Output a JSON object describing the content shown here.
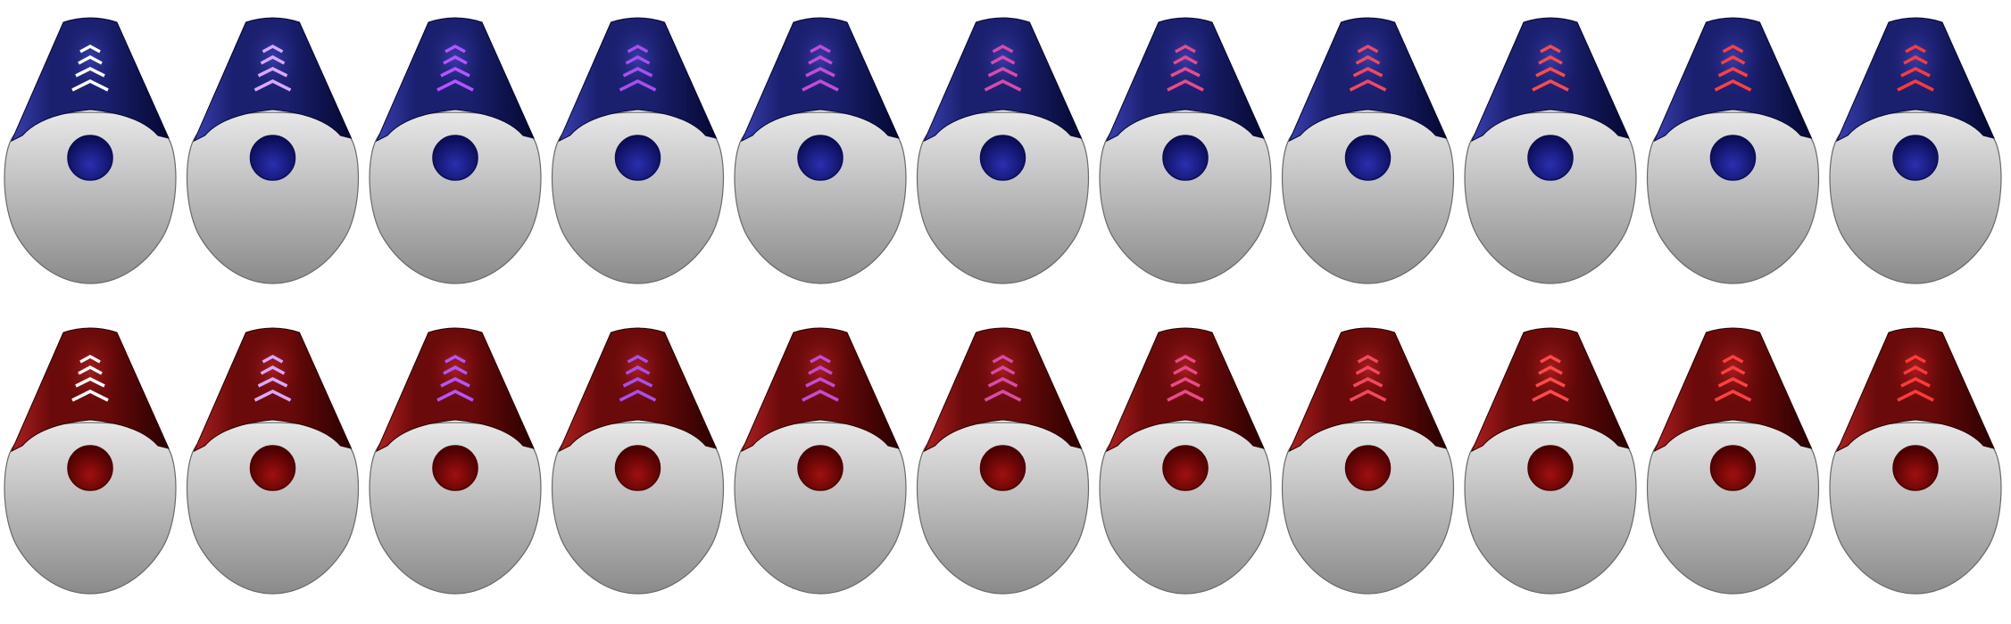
{
  "sprite_sheet": {
    "rows": [
      {
        "team": "blue",
        "cone_dark": "#050830",
        "cone_mid": "#1a1f6e",
        "cone_light": "#3a40b0",
        "dot_dark": "#0b0d55",
        "dot_light": "#2a2fb0",
        "frames": 11
      },
      {
        "team": "red",
        "cone_dark": "#2a0000",
        "cone_mid": "#6a0a0a",
        "cone_light": "#b02020",
        "dot_dark": "#4a0000",
        "dot_light": "#a01010",
        "frames": 11
      }
    ],
    "chevron_colors": [
      "#ffffff",
      "#d9a8ff",
      "#b455ff",
      "#a84ef0",
      "#c44bd8",
      "#d94aa8",
      "#ea4a8a",
      "#f24860",
      "#ff4a4a",
      "#ff4040",
      "#ff3a3a"
    ],
    "body_top": "#e8e8e8",
    "body_bottom": "#8a8a8a"
  }
}
